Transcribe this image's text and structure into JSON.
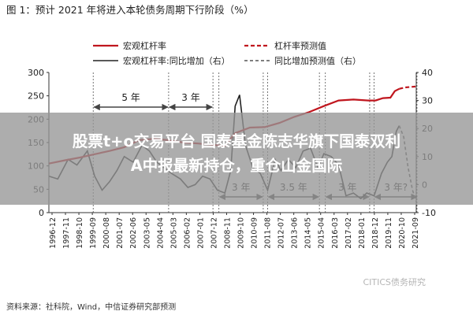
{
  "figure_title": "图 1：预计 2021 年将进入本轮债务周期下行阶段（%）",
  "headline": {
    "line1": "股票t+o交易平台 国泰基金陈志华旗下国泰双利",
    "line2": "A中报最新持仓，重仓山金国际"
  },
  "source": "资料来源：社科院，Wind，中信证券研究部预测",
  "watermark": "CITICS债务研究",
  "colors": {
    "leverage": "#c0161e",
    "yoy": "#222222",
    "arrow": "#444444"
  },
  "chart_data": {
    "type": "line",
    "legend": {
      "leverage": "宏观杠杆率",
      "leverage_forecast": "杠杆率预测值",
      "yoy": "宏观杠杆率:同比增加（右）",
      "yoy_forecast": "同比增加预测值（右）"
    },
    "ylim_left": [
      0,
      300
    ],
    "ylim_right": [
      -10,
      40
    ],
    "yticks_left": [
      0,
      50,
      100,
      150,
      200,
      250,
      300
    ],
    "yticks_right": [
      -10,
      0,
      10,
      20,
      30,
      40
    ],
    "x_ticks": [
      "1996-12",
      "1997-11",
      "1998-10",
      "1999-09",
      "2000-08",
      "2001-07",
      "2002-06",
      "2003-05",
      "2004-04",
      "2005-03",
      "2006-02",
      "2007-01",
      "2007-12",
      "2008-11",
      "2009-10",
      "2010-09",
      "2011-08",
      "2012-07",
      "2013-06",
      "2014-05",
      "2015-04",
      "2016-03",
      "2017-02",
      "2018-01",
      "2018-12",
      "2019-11",
      "2020-10",
      "2021-09"
    ],
    "leverage": {
      "x": [
        1996.9,
        1998.0,
        1999.0,
        2000.0,
        2001.0,
        2002.0,
        2003.0,
        2004.0,
        2005.0,
        2006.0,
        2007.0,
        2008.0,
        2008.8,
        2009.5,
        2010.5,
        2011.5,
        2012.5,
        2013.5,
        2014.5,
        2015.5,
        2016.5,
        2017.5,
        2018.5,
        2019.0,
        2019.5,
        2020.0,
        2020.3,
        2020.6
      ],
      "y": [
        105,
        112,
        118,
        125,
        132,
        140,
        155,
        158,
        155,
        150,
        148,
        145,
        143,
        170,
        182,
        183,
        192,
        205,
        215,
        228,
        240,
        242,
        240,
        240,
        245,
        246,
        260,
        265
      ]
    },
    "leverage_forecast": {
      "x": [
        2020.6,
        2021.0,
        2021.75
      ],
      "y": [
        265,
        268,
        270
      ]
    },
    "yoy": {
      "x": [
        1996.9,
        1997.5,
        1998.2,
        1998.8,
        1999.5,
        2000.0,
        2000.5,
        2001.0,
        2001.5,
        2002.0,
        2002.6,
        2003.2,
        2003.7,
        2004.2,
        2004.7,
        2005.2,
        2005.8,
        2006.3,
        2006.8,
        2007.3,
        2007.8,
        2008.3,
        2008.8,
        2009.2,
        2009.5,
        2009.8,
        2010.2,
        2010.7,
        2011.2,
        2011.7,
        2012.2,
        2012.6,
        2013.1,
        2013.6,
        2014.1,
        2014.6,
        2015.1,
        2015.5,
        2016.0,
        2016.5,
        2017.0,
        2017.5,
        2018.0,
        2018.4,
        2018.9,
        2019.4,
        2019.8,
        2020.1,
        2020.4,
        2020.6
      ],
      "y": [
        3,
        2,
        9,
        7,
        12,
        3,
        -2,
        1,
        5,
        10,
        8,
        14,
        12,
        8,
        6,
        4,
        2,
        -1,
        0,
        3,
        2,
        -2,
        -3,
        5,
        28,
        32,
        14,
        6,
        4,
        -2,
        9,
        5,
        9,
        6,
        12,
        13,
        6,
        11,
        10,
        7,
        -4,
        -3,
        -5,
        -3,
        -4,
        4,
        8,
        10,
        19,
        21
      ]
    },
    "yoy_forecast": {
      "x": [
        2020.6,
        2020.9,
        2021.2,
        2021.5,
        2021.75
      ],
      "y": [
        21,
        17,
        6,
        -2,
        -6
      ]
    },
    "cycle_annotations": [
      {
        "label": "5 年",
        "from": 1999.9,
        "to": 2005.0
      },
      {
        "label": "3 年",
        "from": 2005.0,
        "to": 2008.0
      },
      {
        "label": "3 年",
        "from": 2008.4,
        "to": 2011.4
      },
      {
        "label": "3.5 年",
        "from": 2011.7,
        "to": 2015.2
      },
      {
        "label": "3 年",
        "from": 2015.6,
        "to": 2018.6
      },
      {
        "label": "3 年?",
        "from": 2018.9,
        "to": 2021.9
      }
    ]
  }
}
